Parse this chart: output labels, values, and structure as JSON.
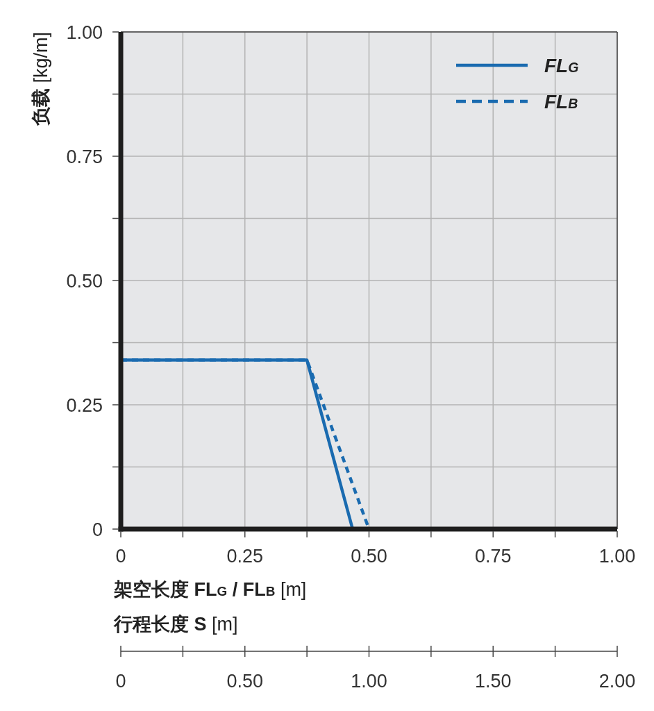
{
  "chart_data": {
    "type": "line",
    "xlabel": "架空长度 FL$_{G}$ / FL$_{B}$ [m]",
    "ylabel": "负载 [kg/m]",
    "x2label": "行程长度 S [m]",
    "xlim": [
      0,
      1
    ],
    "ylim": [
      0,
      1
    ],
    "x2lim": [
      0,
      2
    ],
    "xticks": [
      0,
      {
        "value": 0.125,
        "label": null
      },
      0.25,
      {
        "value": 0.375,
        "label": null
      },
      {
        "value": 0.5,
        "label": "0.50"
      },
      {
        "value": 0.625,
        "label": null
      },
      0.75,
      {
        "value": 0.875,
        "label": null
      },
      {
        "value": 1,
        "label": "1.00"
      }
    ],
    "yticks": [
      0,
      {
        "value": 0.125,
        "label": null
      },
      0.25,
      {
        "value": 0.375,
        "label": null
      },
      {
        "value": 0.5,
        "label": "0.50"
      },
      {
        "value": 0.625,
        "label": null
      },
      0.75,
      {
        "value": 0.875,
        "label": null
      },
      {
        "value": 1,
        "label": "1.00"
      }
    ],
    "x2ticks": [
      0,
      {
        "value": 0.25,
        "label": null
      },
      {
        "value": 0.5,
        "label": "0.50"
      },
      {
        "value": 0.75,
        "label": null
      },
      {
        "value": 1,
        "label": "1.00"
      },
      {
        "value": 1.25,
        "label": null
      },
      {
        "value": 1.5,
        "label": "1.50"
      },
      {
        "value": 1.75,
        "label": null
      },
      {
        "value": 2,
        "label": "2.00"
      }
    ],
    "grid": true,
    "legend": "top right",
    "series": [
      {
        "name": "FL$_{G}$",
        "color": "#1a6bb0",
        "line_style": "solid",
        "x": [
          0,
          0.375,
          0.467
        ],
        "values": [
          0.34,
          0.34,
          0
        ]
      },
      {
        "name": "FL$_{B}$",
        "color": "#1a6bb0",
        "line_style": "dashed",
        "x": [
          0,
          0.375,
          0.5
        ],
        "values": [
          0.34,
          0.34,
          0
        ]
      }
    ]
  }
}
